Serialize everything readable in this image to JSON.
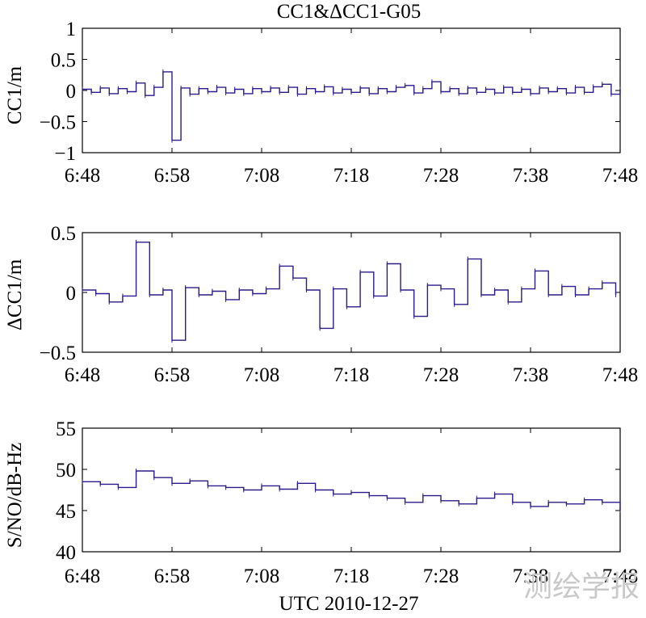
{
  "chart_data": [
    {
      "type": "line",
      "title": "CC1&ΔCC1-G05",
      "ylabel": "CC1/m",
      "xlabel": "",
      "ylim": [
        -1,
        1
      ],
      "yticks": [
        1,
        0.5,
        0,
        -0.5,
        -1
      ],
      "ytick_labels": [
        "1",
        "0.5",
        "0",
        "−0.5",
        "−1"
      ],
      "xticks": [
        "6:48",
        "6:58",
        "7:08",
        "7:18",
        "7:28",
        "7:38",
        "7:48"
      ],
      "xlim_minutes": [
        0,
        60
      ],
      "grid": false,
      "series": [
        {
          "color": "#2e1a8a",
          "x": [
            0,
            1,
            2,
            3,
            4,
            5,
            6,
            7,
            8,
            9,
            10,
            11,
            12,
            13,
            14,
            15,
            16,
            17,
            18,
            19,
            20,
            21,
            22,
            23,
            24,
            25,
            26,
            27,
            28,
            29,
            30,
            31,
            32,
            33,
            34,
            35,
            36,
            37,
            38,
            39,
            40,
            41,
            42,
            43,
            44,
            45,
            46,
            47,
            48,
            49,
            50,
            51,
            52,
            53,
            54,
            55,
            56,
            57,
            58,
            59,
            60
          ],
          "y": [
            0.02,
            -0.03,
            0.04,
            -0.05,
            0.03,
            -0.02,
            0.12,
            -0.08,
            0.05,
            0.3,
            -0.8,
            0.04,
            -0.06,
            0.03,
            -0.02,
            0.05,
            -0.04,
            0.02,
            -0.05,
            0.03,
            -0.02,
            0.04,
            -0.03,
            0.05,
            -0.06,
            0.03,
            -0.02,
            0.06,
            -0.04,
            0.02,
            -0.03,
            0.04,
            -0.05,
            0.03,
            -0.02,
            0.05,
            0.08,
            -0.04,
            0.03,
            0.14,
            -0.02,
            0.03,
            -0.05,
            0.04,
            -0.03,
            0.02,
            -0.04,
            0.05,
            -0.03,
            0.02,
            -0.05,
            0.04,
            -0.02,
            0.03,
            -0.04,
            0.05,
            -0.03,
            0.06,
            0.1,
            -0.06,
            0.02
          ]
        }
      ]
    },
    {
      "type": "line",
      "title": "",
      "ylabel": "ΔCC1/m",
      "xlabel": "",
      "ylim": [
        -0.5,
        0.5
      ],
      "yticks": [
        0.5,
        0,
        -0.5
      ],
      "ytick_labels": [
        "0.5",
        "0",
        "−0.5"
      ],
      "xticks": [
        "6:48",
        "6:58",
        "7:08",
        "7:18",
        "7:28",
        "7:38",
        "7:48"
      ],
      "xlim_minutes": [
        0,
        60
      ],
      "grid": false,
      "series": [
        {
          "color": "#2e1a8a",
          "x": [
            0,
            1.5,
            3,
            4.5,
            6,
            7.5,
            9,
            10,
            11.5,
            13,
            14.5,
            16,
            17.5,
            19,
            20.5,
            22,
            23.5,
            25,
            26.5,
            28,
            29.5,
            31,
            32.5,
            34,
            35.5,
            37,
            38.5,
            40,
            41.5,
            43,
            44.5,
            46,
            47.5,
            49,
            50.5,
            52,
            53.5,
            55,
            56.5,
            58,
            59.5
          ],
          "y": [
            0.02,
            -0.01,
            -0.08,
            -0.03,
            0.42,
            -0.02,
            0.02,
            -0.4,
            0.04,
            -0.02,
            0.01,
            -0.06,
            0.02,
            -0.01,
            0.03,
            0.22,
            0.12,
            0.02,
            -0.3,
            0.03,
            -0.12,
            0.17,
            -0.03,
            0.24,
            0.02,
            -0.2,
            0.06,
            0.03,
            -0.1,
            0.28,
            -0.02,
            0.02,
            -0.08,
            0.03,
            0.18,
            -0.02,
            0.05,
            -0.02,
            0.03,
            0.08,
            -0.02
          ]
        }
      ]
    },
    {
      "type": "line",
      "title": "",
      "ylabel": "S/NO/dB-Hz",
      "xlabel": "UTC 2010-12-27",
      "ylim": [
        40,
        55
      ],
      "yticks": [
        55,
        50,
        45,
        40
      ],
      "ytick_labels": [
        "55",
        "50",
        "45",
        "40"
      ],
      "xticks": [
        "6:48",
        "6:58",
        "7:08",
        "7:18",
        "7:28",
        "7:38",
        "7:48"
      ],
      "xlim_minutes": [
        0,
        60
      ],
      "grid": false,
      "series": [
        {
          "color": "#2e1a8a",
          "x": [
            0,
            2,
            4,
            6,
            8,
            10,
            12,
            14,
            16,
            18,
            20,
            22,
            24,
            26,
            28,
            30,
            32,
            34,
            36,
            38,
            40,
            42,
            44,
            46,
            48,
            50,
            52,
            54,
            56,
            58,
            60
          ],
          "y": [
            48.5,
            48.2,
            47.8,
            49.8,
            49.0,
            48.3,
            48.6,
            48.0,
            47.8,
            47.5,
            48.0,
            47.6,
            48.3,
            47.5,
            47.0,
            47.2,
            46.8,
            46.5,
            46.0,
            46.8,
            46.2,
            45.8,
            46.5,
            47.0,
            46.0,
            45.5,
            46.0,
            45.8,
            46.3,
            46.0,
            45.0
          ]
        }
      ]
    }
  ],
  "watermark": "测绘学报"
}
